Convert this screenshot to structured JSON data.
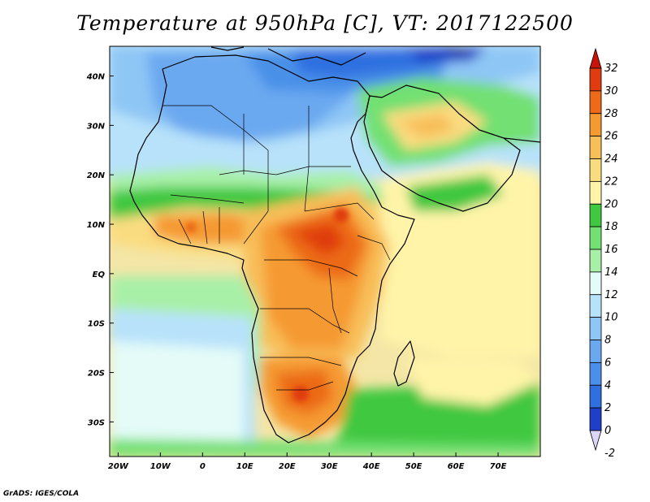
{
  "title": "Temperature at 950hPa [C], VT: 2017122500",
  "credit": "GrADS: IGES/COLA",
  "chart_data": {
    "type": "heatmap",
    "title": "Temperature at 950hPa [C], VT: 2017122500",
    "xlabel": "",
    "ylabel": "",
    "xlim": [
      -22,
      80
    ],
    "ylim": [
      -37,
      46
    ],
    "x_ticks": [
      "20W",
      "10W",
      "0",
      "10E",
      "20E",
      "30E",
      "40E",
      "50E",
      "60E",
      "70E"
    ],
    "x_tick_values": [
      -20,
      -10,
      0,
      10,
      20,
      30,
      40,
      50,
      60,
      70
    ],
    "y_ticks": [
      "40N",
      "30N",
      "20N",
      "10N",
      "EQ",
      "10S",
      "20S",
      "30S"
    ],
    "y_tick_values": [
      40,
      30,
      20,
      10,
      0,
      -10,
      -20,
      -30
    ],
    "colorbar": {
      "levels": [
        -2,
        0,
        2,
        4,
        6,
        8,
        10,
        12,
        14,
        16,
        18,
        20,
        22,
        24,
        26,
        28,
        30,
        32
      ],
      "labels": [
        "32",
        "30",
        "28",
        "26",
        "24",
        "22",
        "20",
        "18",
        "16",
        "14",
        "12",
        "10",
        "8",
        "6",
        "4",
        "2",
        "0",
        "-2"
      ],
      "colors": [
        "#1a0e8c",
        "#1f3fc8",
        "#2f6fe0",
        "#4a90e8",
        "#6aa8f0",
        "#8ec6f5",
        "#b8e2fa",
        "#e4fbf8",
        "#a8f0a8",
        "#72e072",
        "#40c840",
        "#fff4a8",
        "#fadc80",
        "#f8be58",
        "#f59a30",
        "#ec6a18",
        "#e03c10",
        "#c81408"
      ],
      "extend": "both"
    }
  }
}
